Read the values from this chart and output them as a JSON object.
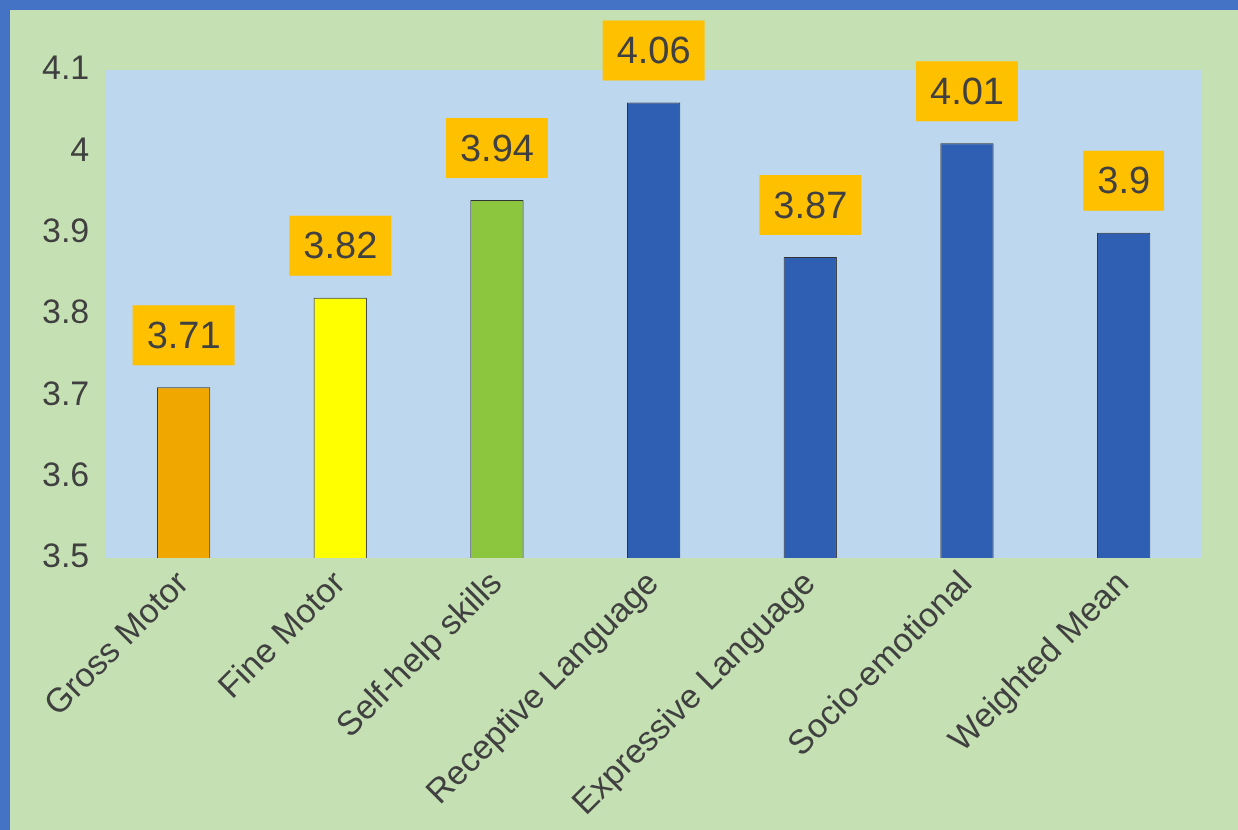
{
  "chart_data": {
    "type": "bar",
    "categories": [
      "Gross Motor",
      "Fine Motor",
      "Self-help skills",
      "Receptive Language",
      "Expressive Language",
      "Socio-emotional",
      "Weighted Mean"
    ],
    "values": [
      3.71,
      3.82,
      3.94,
      4.06,
      3.87,
      4.01,
      3.9
    ],
    "colors": [
      "#f0a800",
      "#ffff00",
      "#8cc63f",
      "#2f5fb3",
      "#2f5fb3",
      "#2f5fb3",
      "#2f5fb3"
    ],
    "ylim": [
      3.5,
      4.1
    ],
    "yticks": [
      3.5,
      3.6,
      3.7,
      3.8,
      3.9,
      4,
      4.1
    ],
    "grid": false,
    "legend": false,
    "data_labels": true
  }
}
